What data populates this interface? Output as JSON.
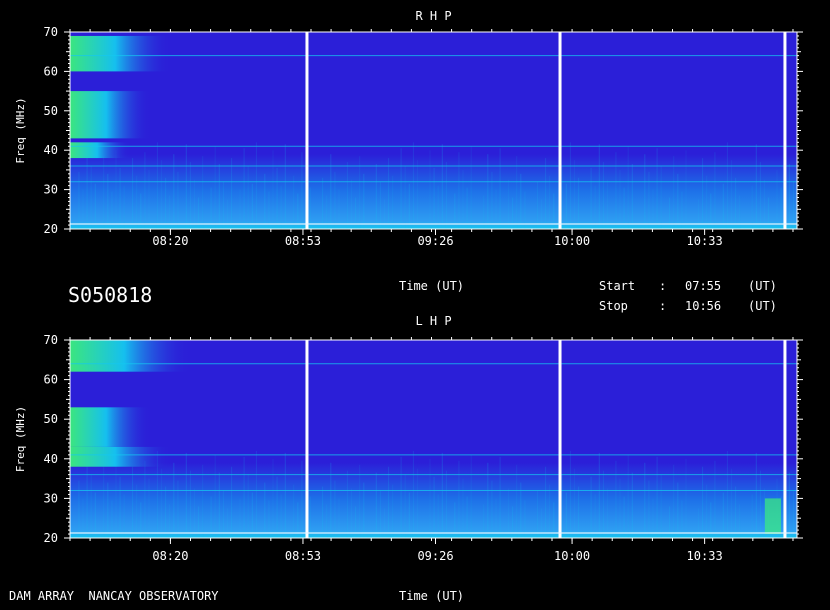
{
  "observation_id": "S050818",
  "time_label": "Time (UT)",
  "start": {
    "label": "Start",
    "sep": ":",
    "value": "07:55",
    "unit": "(UT)"
  },
  "stop": {
    "label": "Stop",
    "sep": ":",
    "value": "10:56",
    "unit": "(UT)"
  },
  "footer": "DAM ARRAY  NANCAY OBSERVATORY",
  "chart_data": [
    {
      "type": "heatmap",
      "title": "R H P",
      "ylabel": "Freq (MHz)",
      "xlabel": "Time (UT)",
      "ylim": [
        20,
        70
      ],
      "xlim": [
        "07:55",
        "10:56"
      ],
      "yticks": [
        20,
        30,
        40,
        50,
        60,
        70
      ],
      "xticks": [
        "08:20",
        "08:53",
        "09:26",
        "10:00",
        "10:33"
      ],
      "colormap": {
        "background": "#2b1fd8",
        "low_band": "#1d6fe8",
        "medium": "#14c8f0",
        "high": "#3cf07a"
      },
      "features": {
        "vertical_lines_time": [
          "08:54",
          "09:57",
          "10:53"
        ],
        "horizontal_lines_mhz": [
          32,
          36,
          41,
          64
        ],
        "emission_bursts": [
          {
            "t_start": "07:55",
            "t_end": "08:20",
            "f_low": 60,
            "f_high": 69
          },
          {
            "t_start": "07:55",
            "t_end": "08:15",
            "f_low": 43,
            "f_high": 55
          },
          {
            "t_start": "07:55",
            "t_end": "08:10",
            "f_low": 38,
            "f_high": 42
          }
        ]
      }
    },
    {
      "type": "heatmap",
      "title": "L H P",
      "ylabel": "Freq (MHz)",
      "xlabel": "Time (UT)",
      "ylim": [
        20,
        70
      ],
      "xlim": [
        "07:55",
        "10:56"
      ],
      "yticks": [
        20,
        30,
        40,
        50,
        60,
        70
      ],
      "xticks": [
        "08:20",
        "08:53",
        "09:26",
        "10:00",
        "10:33"
      ],
      "colormap": {
        "background": "#2b1fd8",
        "low_band": "#1d6fe8",
        "medium": "#14c8f0",
        "high": "#3cf07a"
      },
      "features": {
        "vertical_lines_time": [
          "08:54",
          "09:57",
          "10:53"
        ],
        "horizontal_lines_mhz": [
          32,
          36,
          41,
          64
        ],
        "emission_bursts": [
          {
            "t_start": "07:55",
            "t_end": "08:25",
            "f_low": 62,
            "f_high": 70
          },
          {
            "t_start": "07:55",
            "t_end": "08:15",
            "f_low": 43,
            "f_high": 53
          },
          {
            "t_start": "07:55",
            "t_end": "08:20",
            "f_low": 38,
            "f_high": 43
          },
          {
            "t_start": "10:48",
            "t_end": "10:52",
            "f_low": 21,
            "f_high": 30
          }
        ]
      }
    }
  ]
}
